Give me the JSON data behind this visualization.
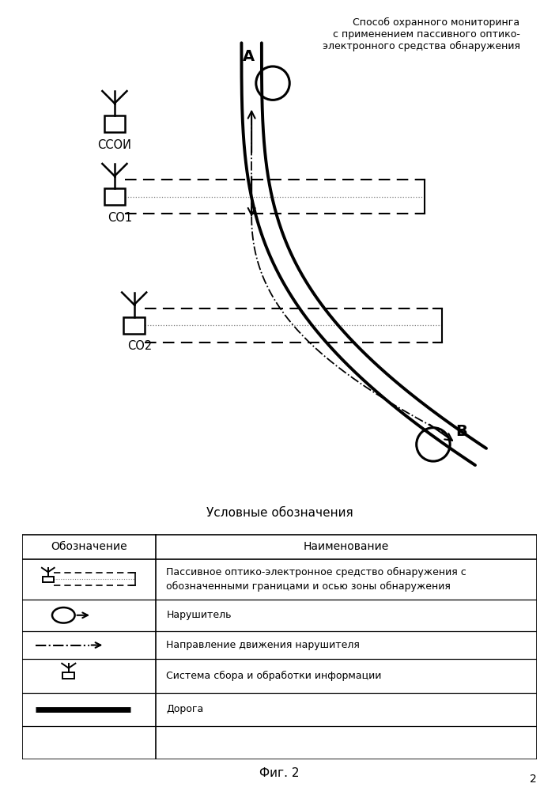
{
  "title_line1": "Способ охранного мониторинга",
  "title_line2": "с применением пассивного оптико-",
  "title_line3": "электронного средства обнаружения",
  "fig_label": "Фиг. 2",
  "page_num": "2",
  "legend_title": "Условные обозначения",
  "legend_col1": "Обозначение",
  "legend_col2": "Наименование",
  "legend_row0": "Пассивное оптико-электронное средство обнаружения с\nобозначенными границами и осью зоны обнаружения",
  "legend_row1": "Нарушитель",
  "legend_row2": "Направление движения нарушителя",
  "legend_row3": "Система сбора и обработки информации",
  "legend_row4": "Дорога",
  "bg_color": "#ffffff",
  "fg_color": "#000000"
}
